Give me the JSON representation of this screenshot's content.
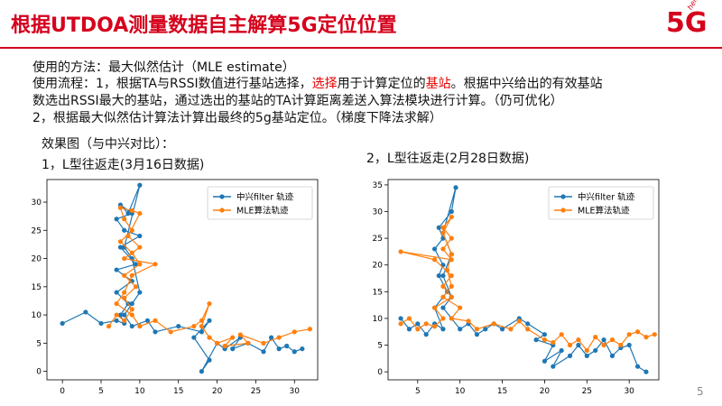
{
  "header": {
    "title": "根据UTDOA测量数据自主解算5G定位位置",
    "logo": {
      "big": "5G",
      "small": "hello",
      "color": "#d5001c"
    }
  },
  "body_text": {
    "line1": "使用的方法：最大似然估计（MLE estimate）",
    "line2_a": "使用流程：1，根据TA与RSSI数值进行基站选择，",
    "line2_red1": "选择",
    "line2_b": "用于计算定位的",
    "line2_red2": "基站",
    "line2_c": "。根据中兴给出的有效基站",
    "line3": "数选出RSSI最大的基站，通过选出的基站的TA计算距离差送入算法模块进行计算。（仍可优化）",
    "line4": "2，根据最大似然估计算法计算出最终的5g基站定位。（梯度下降法求解）",
    "effect_label": "效果图（与中兴对比）：",
    "chart1_label": "1，L型往返走(3月16日数据)",
    "chart2_label": "2，L型往返走(2月28日数据)"
  },
  "page_number": "5",
  "colors": {
    "blue": "#1f77b4",
    "orange": "#ff7f0e",
    "accent": "#d5001c"
  },
  "chart_data": [
    {
      "type": "line",
      "xlim": [
        -2,
        33
      ],
      "ylim": [
        -1.5,
        34
      ],
      "xticks": [
        0,
        5,
        10,
        15,
        20,
        25,
        30
      ],
      "yticks": [
        0,
        5,
        10,
        15,
        20,
        25,
        30
      ],
      "legend_position": "top-right",
      "series": [
        {
          "name": "中兴filter 轨迹",
          "color": "#1f77b4",
          "points": [
            [
              0,
              8.5
            ],
            [
              3,
              10.5
            ],
            [
              5,
              8.5
            ],
            [
              7,
              9
            ],
            [
              8,
              8.5
            ],
            [
              7.5,
              10
            ],
            [
              8.5,
              12
            ],
            [
              7,
              14
            ],
            [
              9,
              16
            ],
            [
              7,
              18
            ],
            [
              9.5,
              19
            ],
            [
              7.5,
              22
            ],
            [
              10,
              24
            ],
            [
              8,
              25
            ],
            [
              7,
              27
            ],
            [
              9,
              28
            ],
            [
              7.5,
              29.5
            ],
            [
              8.5,
              28
            ],
            [
              10,
              33
            ],
            [
              8,
              22
            ],
            [
              9,
              20
            ],
            [
              10,
              14
            ],
            [
              9,
              12
            ],
            [
              8,
              10
            ],
            [
              9,
              8
            ],
            [
              11,
              9
            ],
            [
              12,
              7
            ],
            [
              15,
              8
            ],
            [
              18,
              7
            ],
            [
              19,
              9
            ],
            [
              17,
              6
            ],
            [
              19,
              2
            ],
            [
              18,
              0
            ],
            [
              20,
              5
            ],
            [
              21,
              4
            ],
            [
              23,
              6
            ],
            [
              22,
              4
            ],
            [
              24,
              5
            ],
            [
              26,
              3.5
            ],
            [
              27,
              6
            ],
            [
              28,
              4
            ],
            [
              29,
              4.5
            ],
            [
              30,
              3.5
            ],
            [
              31,
              4
            ]
          ]
        },
        {
          "name": "MLE算法轨迹",
          "color": "#ff7f0e",
          "points": [
            [
              6,
              8
            ],
            [
              7,
              10
            ],
            [
              8,
              9
            ],
            [
              9,
              11
            ],
            [
              8,
              13
            ],
            [
              9.5,
              15
            ],
            [
              8,
              17
            ],
            [
              10,
              19
            ],
            [
              9,
              21
            ],
            [
              7.5,
              23
            ],
            [
              9,
              25
            ],
            [
              8,
              27
            ],
            [
              7.5,
              29
            ],
            [
              9,
              28.5
            ],
            [
              10,
              28
            ],
            [
              8.5,
              24
            ],
            [
              10,
              22
            ],
            [
              8,
              20
            ],
            [
              12,
              19
            ],
            [
              9,
              17
            ],
            [
              8,
              14
            ],
            [
              7,
              12
            ],
            [
              9,
              10
            ],
            [
              10,
              8
            ],
            [
              12,
              9
            ],
            [
              14,
              7
            ],
            [
              17,
              8
            ],
            [
              18,
              9
            ],
            [
              19,
              12
            ],
            [
              18,
              8
            ],
            [
              19,
              6
            ],
            [
              20,
              5
            ],
            [
              22,
              6
            ],
            [
              21,
              4.5
            ],
            [
              24,
              5
            ],
            [
              23,
              6.5
            ],
            [
              26,
              5
            ],
            [
              28,
              6
            ],
            [
              30,
              7
            ],
            [
              32,
              7.5
            ]
          ]
        }
      ]
    },
    {
      "type": "line",
      "xlim": [
        1.5,
        33.5
      ],
      "ylim": [
        -1.5,
        36
      ],
      "xticks": [
        5,
        10,
        15,
        20,
        25,
        30
      ],
      "yticks": [
        0,
        5,
        10,
        15,
        20,
        25,
        30,
        35
      ],
      "legend_position": "top-right",
      "series": [
        {
          "name": "中兴filter 轨迹",
          "color": "#1f77b4",
          "points": [
            [
              3,
              10
            ],
            [
              4,
              8
            ],
            [
              5,
              9
            ],
            [
              6,
              7
            ],
            [
              7,
              9
            ],
            [
              8,
              8
            ],
            [
              7,
              12
            ],
            [
              8.5,
              15
            ],
            [
              7.5,
              18
            ],
            [
              8,
              20
            ],
            [
              7,
              23
            ],
            [
              8,
              25
            ],
            [
              7.5,
              27
            ],
            [
              9,
              30
            ],
            [
              9.5,
              34.5
            ],
            [
              8,
              26
            ],
            [
              9,
              22
            ],
            [
              8,
              18
            ],
            [
              9,
              14
            ],
            [
              8,
              12
            ],
            [
              9,
              10
            ],
            [
              10,
              8
            ],
            [
              11,
              9
            ],
            [
              12,
              7
            ],
            [
              13,
              8
            ],
            [
              14,
              9
            ],
            [
              15,
              8
            ],
            [
              17,
              10
            ],
            [
              18,
              9
            ],
            [
              20,
              7
            ],
            [
              19,
              6
            ],
            [
              21,
              5
            ],
            [
              20,
              2
            ],
            [
              22,
              4
            ],
            [
              21,
              1
            ],
            [
              23,
              3
            ],
            [
              24,
              5
            ],
            [
              25,
              3
            ],
            [
              26,
              4
            ],
            [
              27,
              6
            ],
            [
              28,
              3
            ],
            [
              29,
              4.5
            ],
            [
              30,
              5
            ],
            [
              31,
              1
            ],
            [
              32,
              0
            ]
          ]
        },
        {
          "name": "MLE算法轨迹",
          "color": "#ff7f0e",
          "points": [
            [
              3,
              9
            ],
            [
              4,
              10
            ],
            [
              5,
              8
            ],
            [
              6,
              9
            ],
            [
              7,
              8.5
            ],
            [
              8,
              10
            ],
            [
              7,
              12
            ],
            [
              9,
              14
            ],
            [
              8,
              16
            ],
            [
              9,
              18
            ],
            [
              7,
              21
            ],
            [
              3,
              22.5
            ],
            [
              9,
              21
            ],
            [
              8,
              23
            ],
            [
              9,
              25
            ],
            [
              8,
              27
            ],
            [
              9,
              29
            ],
            [
              8,
              26
            ],
            [
              9,
              22
            ],
            [
              8.5,
              19
            ],
            [
              9,
              16
            ],
            [
              8,
              14
            ],
            [
              10,
              12
            ],
            [
              9,
              10
            ],
            [
              11,
              9.5
            ],
            [
              12,
              8
            ],
            [
              14,
              9
            ],
            [
              16,
              8
            ],
            [
              17,
              9.5
            ],
            [
              18,
              8
            ],
            [
              20,
              6
            ],
            [
              21,
              5.5
            ],
            [
              22,
              7
            ],
            [
              23,
              5
            ],
            [
              24,
              6
            ],
            [
              25,
              4
            ],
            [
              26,
              6.5
            ],
            [
              27,
              5
            ],
            [
              28,
              6
            ],
            [
              29,
              5
            ],
            [
              30,
              7
            ],
            [
              31,
              7.5
            ],
            [
              32,
              6.5
            ],
            [
              33,
              7
            ]
          ]
        }
      ]
    }
  ]
}
